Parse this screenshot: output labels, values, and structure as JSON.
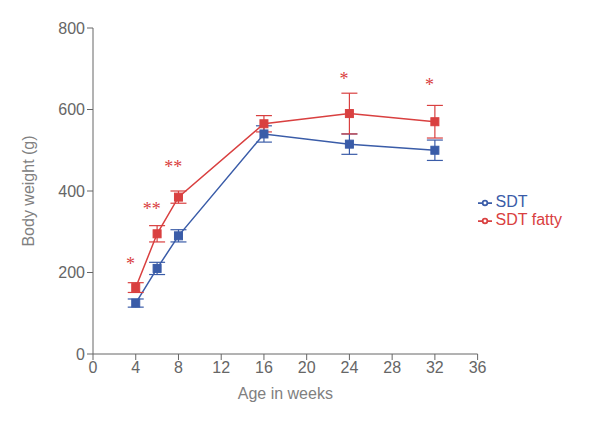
{
  "chart_data": {
    "type": "line",
    "x": [
      4,
      6,
      8,
      16,
      24,
      32
    ],
    "series": [
      {
        "name": "SDT",
        "color": "#3a5ca8",
        "values": [
          125,
          210,
          290,
          540,
          515,
          500
        ],
        "errors": [
          10,
          15,
          15,
          20,
          25,
          25
        ],
        "marker": "square"
      },
      {
        "name": "SDT fatty",
        "color": "#d94040",
        "values": [
          163,
          295,
          385,
          565,
          590,
          570
        ],
        "errors": [
          12,
          20,
          15,
          20,
          50,
          40
        ],
        "marker": "square"
      }
    ],
    "xlabel": "Age in weeks",
    "ylabel": "Body weight (g)",
    "xlim": [
      0,
      36
    ],
    "ylim": [
      0,
      800
    ],
    "xticks": [
      0,
      4,
      8,
      12,
      16,
      20,
      24,
      28,
      32,
      36
    ],
    "yticks": [
      0,
      200,
      400,
      600,
      800
    ],
    "annotations": [
      {
        "x": 3.5,
        "y": 205,
        "text": "*",
        "color": "#d94040"
      },
      {
        "x": 5.5,
        "y": 340,
        "text": "**",
        "color": "#d94040"
      },
      {
        "x": 7.5,
        "y": 445,
        "text": "**",
        "color": "#d94040"
      },
      {
        "x": 23.5,
        "y": 660,
        "text": "*",
        "color": "#d94040"
      },
      {
        "x": 31.5,
        "y": 645,
        "text": "*",
        "color": "#d94040"
      }
    ],
    "legend": "right",
    "grid": false
  }
}
